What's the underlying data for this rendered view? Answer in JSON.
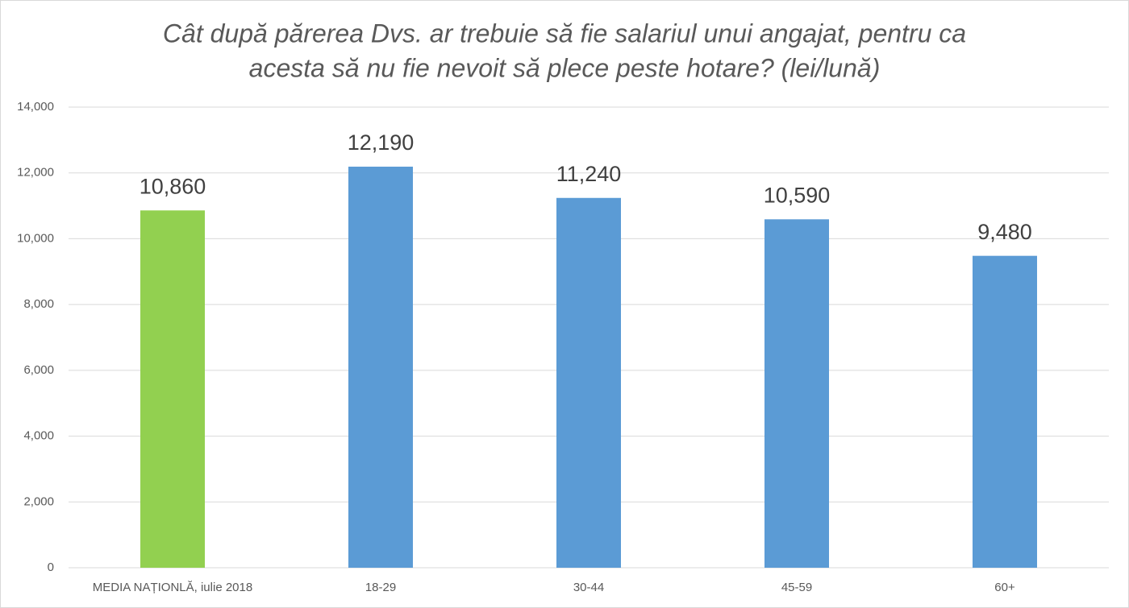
{
  "chart_data": {
    "type": "bar",
    "title": [
      "Cât după părerea Dvs. ar trebuie să fie salariul unui angajat, pentru ca",
      "acesta să nu fie nevoit să plece peste hotare? (lei/lună)"
    ],
    "categories": [
      "MEDIA NAȚIONLĂ, iulie 2018",
      "18-29",
      "30-44",
      "45-59",
      "60+"
    ],
    "values": [
      10860,
      12190,
      11240,
      10590,
      9480
    ],
    "value_labels": [
      "10,860",
      "12,190",
      "11,240",
      "10,590",
      "9,480"
    ],
    "colors": [
      "#92d050",
      "#5b9bd5",
      "#5b9bd5",
      "#5b9bd5",
      "#5b9bd5"
    ],
    "ylim": [
      0,
      14000
    ],
    "yticks": [
      0,
      {
        "value": 2000,
        "label": "2,000"
      },
      {
        "value": 4000,
        "label": "4,000"
      },
      {
        "value": 6000,
        "label": "6,000"
      },
      {
        "value": 8000,
        "label": "8,000"
      },
      {
        "value": 10000,
        "label": "10,000"
      },
      {
        "value": 12000,
        "label": "12,000"
      },
      {
        "value": 14000,
        "label": "14,000"
      }
    ],
    "grid": true
  }
}
